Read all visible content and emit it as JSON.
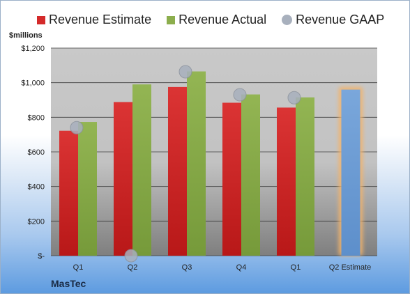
{
  "legend": {
    "estimate": "Revenue Estimate",
    "actual": "Revenue Actual",
    "gaap": "Revenue GAAP"
  },
  "unit_label": "$millions",
  "company": "MasTec",
  "colors": {
    "estimate": "#d42a2a",
    "actual": "#8cae4d",
    "gaap": "#a8b0bd",
    "forecast": "#6e9fd6",
    "forecast_glow": "#f3b36a",
    "plot_bg": "#c8c8c8"
  },
  "chart_data": {
    "type": "bar",
    "categories": [
      "Q1",
      "Q2",
      "Q3",
      "Q4",
      "Q1",
      "Q2 Estimate"
    ],
    "series": [
      {
        "name": "Revenue Estimate",
        "values": [
          722,
          888,
          975,
          884,
          856,
          null
        ]
      },
      {
        "name": "Revenue Actual",
        "values": [
          773,
          990,
          1065,
          932,
          915,
          960
        ]
      },
      {
        "name": "Revenue GAAP",
        "type": "scatter",
        "values": [
          740,
          0,
          1063,
          930,
          913,
          null
        ]
      }
    ],
    "y_ticks": [
      "$-",
      "$200",
      "$400",
      "$600",
      "$800",
      "$1,000",
      "$1,200"
    ],
    "ylim": [
      0,
      1200
    ],
    "ylabel": "$millions",
    "grid": true,
    "legend_position": "top"
  }
}
